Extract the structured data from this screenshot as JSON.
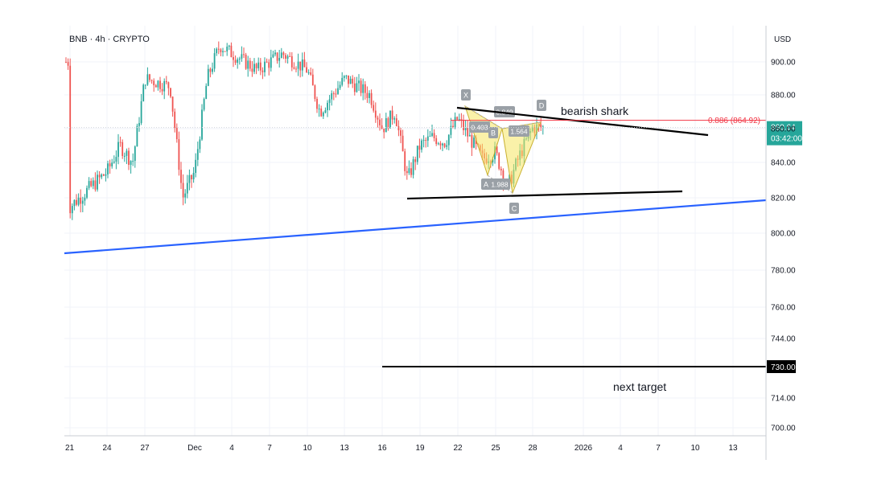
{
  "chart_data": {
    "type": "candlestick",
    "title": "BNB · 4h · CRYPTO",
    "currency": "USD",
    "x_tick_labels": [
      "21",
      "24",
      "27",
      "Dec",
      "4",
      "7",
      "10",
      "13",
      "16",
      "19",
      "22",
      "25",
      "28",
      "2026",
      "4",
      "7",
      "10",
      "13"
    ],
    "y_tick_labels": [
      "900.00",
      "880.00",
      "860.00",
      "840.00",
      "820.00",
      "800.00",
      "780.00",
      "760.00",
      "744.00",
      "730.00",
      "714.00",
      "700.00"
    ],
    "current_price": {
      "value": "860.64",
      "countdown": "03:42:00",
      "color": "#26a69a"
    },
    "fib_level": {
      "label": "0.886 (864.92)",
      "value": 864.92,
      "color": "#f23645"
    },
    "target_level": {
      "value": 730.0,
      "label": "730.00"
    },
    "harmonic_pattern": {
      "name": "bearish shark",
      "points": [
        {
          "label": "X",
          "value": 868
        },
        {
          "label": "A",
          "value": 838
        },
        {
          "label": "B",
          "value": 856
        },
        {
          "label": "C",
          "value": 822
        },
        {
          "label": "D",
          "value": 864.92
        }
      ],
      "ratios": [
        "0.403",
        "0.849",
        "1.564",
        "1.988"
      ],
      "fill_color": "#f5e663"
    },
    "annotations": [
      "bearish shark",
      "next target"
    ],
    "trendline_colors": {
      "blue": "#2962ff",
      "black": "#000000"
    },
    "colors": {
      "up": "#26a69a",
      "down": "#ef5350"
    },
    "price_series_approx": [
      {
        "date": "Nov 21",
        "value": 900
      },
      {
        "date": "Nov 21",
        "value": 815
      },
      {
        "date": "Nov 24",
        "value": 835
      },
      {
        "date": "Nov 25",
        "value": 850
      },
      {
        "date": "Nov 26",
        "value": 840
      },
      {
        "date": "Nov 27",
        "value": 890
      },
      {
        "date": "Nov 29",
        "value": 885
      },
      {
        "date": "Nov 30",
        "value": 820
      },
      {
        "date": "Dec 1",
        "value": 835
      },
      {
        "date": "Dec 2",
        "value": 890
      },
      {
        "date": "Dec 3",
        "value": 910
      },
      {
        "date": "Dec 4",
        "value": 905
      },
      {
        "date": "Dec 6",
        "value": 895
      },
      {
        "date": "Dec 8",
        "value": 905
      },
      {
        "date": "Dec 10",
        "value": 895
      },
      {
        "date": "Dec 11",
        "value": 870
      },
      {
        "date": "Dec 13",
        "value": 890
      },
      {
        "date": "Dec 15",
        "value": 880
      },
      {
        "date": "Dec 16",
        "value": 860
      },
      {
        "date": "Dec 17",
        "value": 870
      },
      {
        "date": "Dec 18",
        "value": 830
      },
      {
        "date": "Dec 19",
        "value": 850
      },
      {
        "date": "Dec 20",
        "value": 855
      },
      {
        "date": "Dec 21",
        "value": 852
      },
      {
        "date": "Dec 22",
        "value": 866
      },
      {
        "date": "Dec 24",
        "value": 842
      },
      {
        "date": "Dec 25",
        "value": 846
      },
      {
        "date": "Dec 26",
        "value": 826
      },
      {
        "date": "Dec 27",
        "value": 845
      },
      {
        "date": "Dec 28",
        "value": 860.64
      }
    ]
  }
}
